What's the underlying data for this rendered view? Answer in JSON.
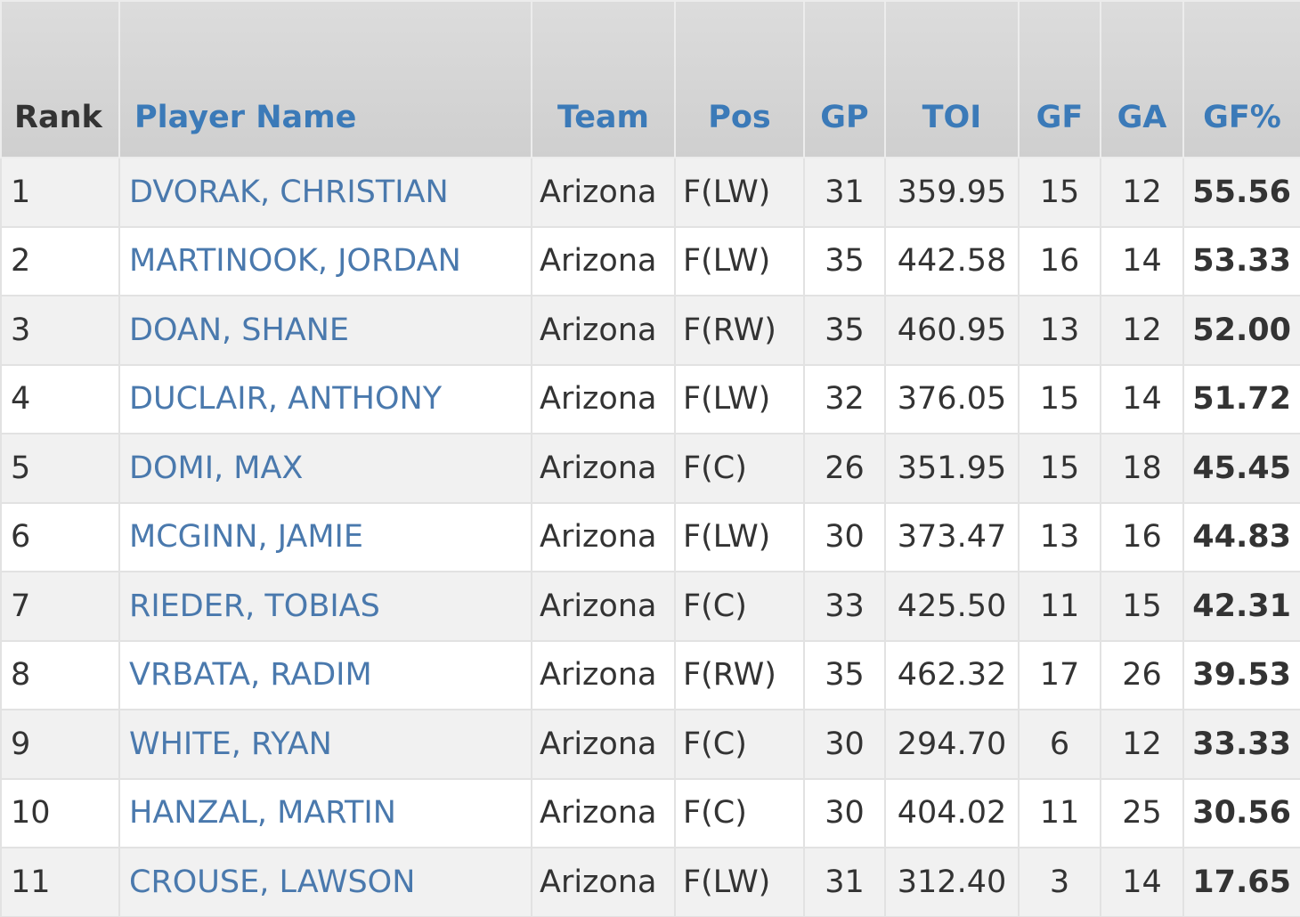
{
  "table": {
    "headers": [
      "Rank",
      "Player Name",
      "Team",
      "Pos",
      "GP",
      "TOI",
      "GF",
      "GA",
      "GF%"
    ],
    "rows": [
      [
        "1",
        "DVORAK, CHRISTIAN",
        "Arizona",
        "F(LW)",
        "31",
        "359.95",
        "15",
        "12",
        "55.56"
      ],
      [
        "2",
        "MARTINOOK, JORDAN",
        "Arizona",
        "F(LW)",
        "35",
        "442.58",
        "16",
        "14",
        "53.33"
      ],
      [
        "3",
        "DOAN, SHANE",
        "Arizona",
        "F(RW)",
        "35",
        "460.95",
        "13",
        "12",
        "52.00"
      ],
      [
        "4",
        "DUCLAIR, ANTHONY",
        "Arizona",
        "F(LW)",
        "32",
        "376.05",
        "15",
        "14",
        "51.72"
      ],
      [
        "5",
        "DOMI, MAX",
        "Arizona",
        "F(C)",
        "26",
        "351.95",
        "15",
        "18",
        "45.45"
      ],
      [
        "6",
        "MCGINN, JAMIE",
        "Arizona",
        "F(LW)",
        "30",
        "373.47",
        "13",
        "16",
        "44.83"
      ],
      [
        "7",
        "RIEDER, TOBIAS",
        "Arizona",
        "F(C)",
        "33",
        "425.50",
        "11",
        "15",
        "42.31"
      ],
      [
        "8",
        "VRBATA, RADIM",
        "Arizona",
        "F(RW)",
        "35",
        "462.32",
        "17",
        "26",
        "39.53"
      ],
      [
        "9",
        "WHITE, RYAN",
        "Arizona",
        "F(C)",
        "30",
        "294.70",
        "6",
        "12",
        "33.33"
      ],
      [
        "10",
        "HANZAL, MARTIN",
        "Arizona",
        "F(C)",
        "30",
        "404.02",
        "11",
        "25",
        "30.56"
      ],
      [
        "11",
        "CROUSE, LAWSON",
        "Arizona",
        "F(LW)",
        "31",
        "312.40",
        "3",
        "14",
        "17.65"
      ]
    ]
  }
}
